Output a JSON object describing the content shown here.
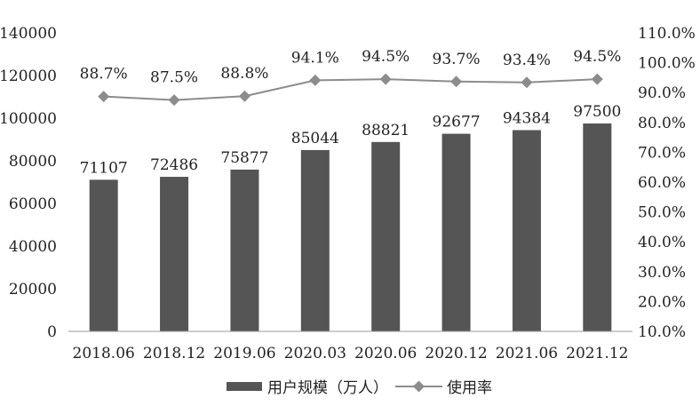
{
  "chart_data": {
    "type": "bar",
    "title": "",
    "xlabel": "",
    "ylabel": "",
    "categories": [
      "2018.06",
      "2018.12",
      "2019.06",
      "2020.03",
      "2020.06",
      "2020.12",
      "2021.06",
      "2021.12"
    ],
    "series": [
      {
        "name": "用户规模（万人）",
        "type": "bar",
        "axis": "left",
        "values": [
          71107,
          72486,
          75877,
          85044,
          88821,
          92677,
          94384,
          97500
        ],
        "labels": [
          "71107",
          "72486",
          "75877",
          "85044",
          "88821",
          "92677",
          "94384",
          "97500"
        ],
        "color": "#555555"
      },
      {
        "name": "使用率",
        "type": "line",
        "axis": "right",
        "values": [
          88.7,
          87.5,
          88.8,
          94.1,
          94.5,
          93.7,
          93.4,
          94.5
        ],
        "labels": [
          "88.7%",
          "87.5%",
          "88.8%",
          "94.1%",
          "94.5%",
          "93.7%",
          "93.4%",
          "94.5%"
        ],
        "color": "#8c8c8c",
        "marker": "diamond"
      }
    ],
    "ylim": [
      0,
      140000
    ],
    "y_ticks": [
      "0",
      "20000",
      "40000",
      "60000",
      "80000",
      "100000",
      "120000",
      "140000"
    ],
    "y2lim": [
      10,
      110
    ],
    "y2_ticks": [
      "10.0%",
      "20.0%",
      "30.0%",
      "40.0%",
      "50.0%",
      "60.0%",
      "70.0%",
      "80.0%",
      "90.0%",
      "100.0%",
      "110.0%"
    ],
    "grid": false,
    "legend": "bottom"
  }
}
